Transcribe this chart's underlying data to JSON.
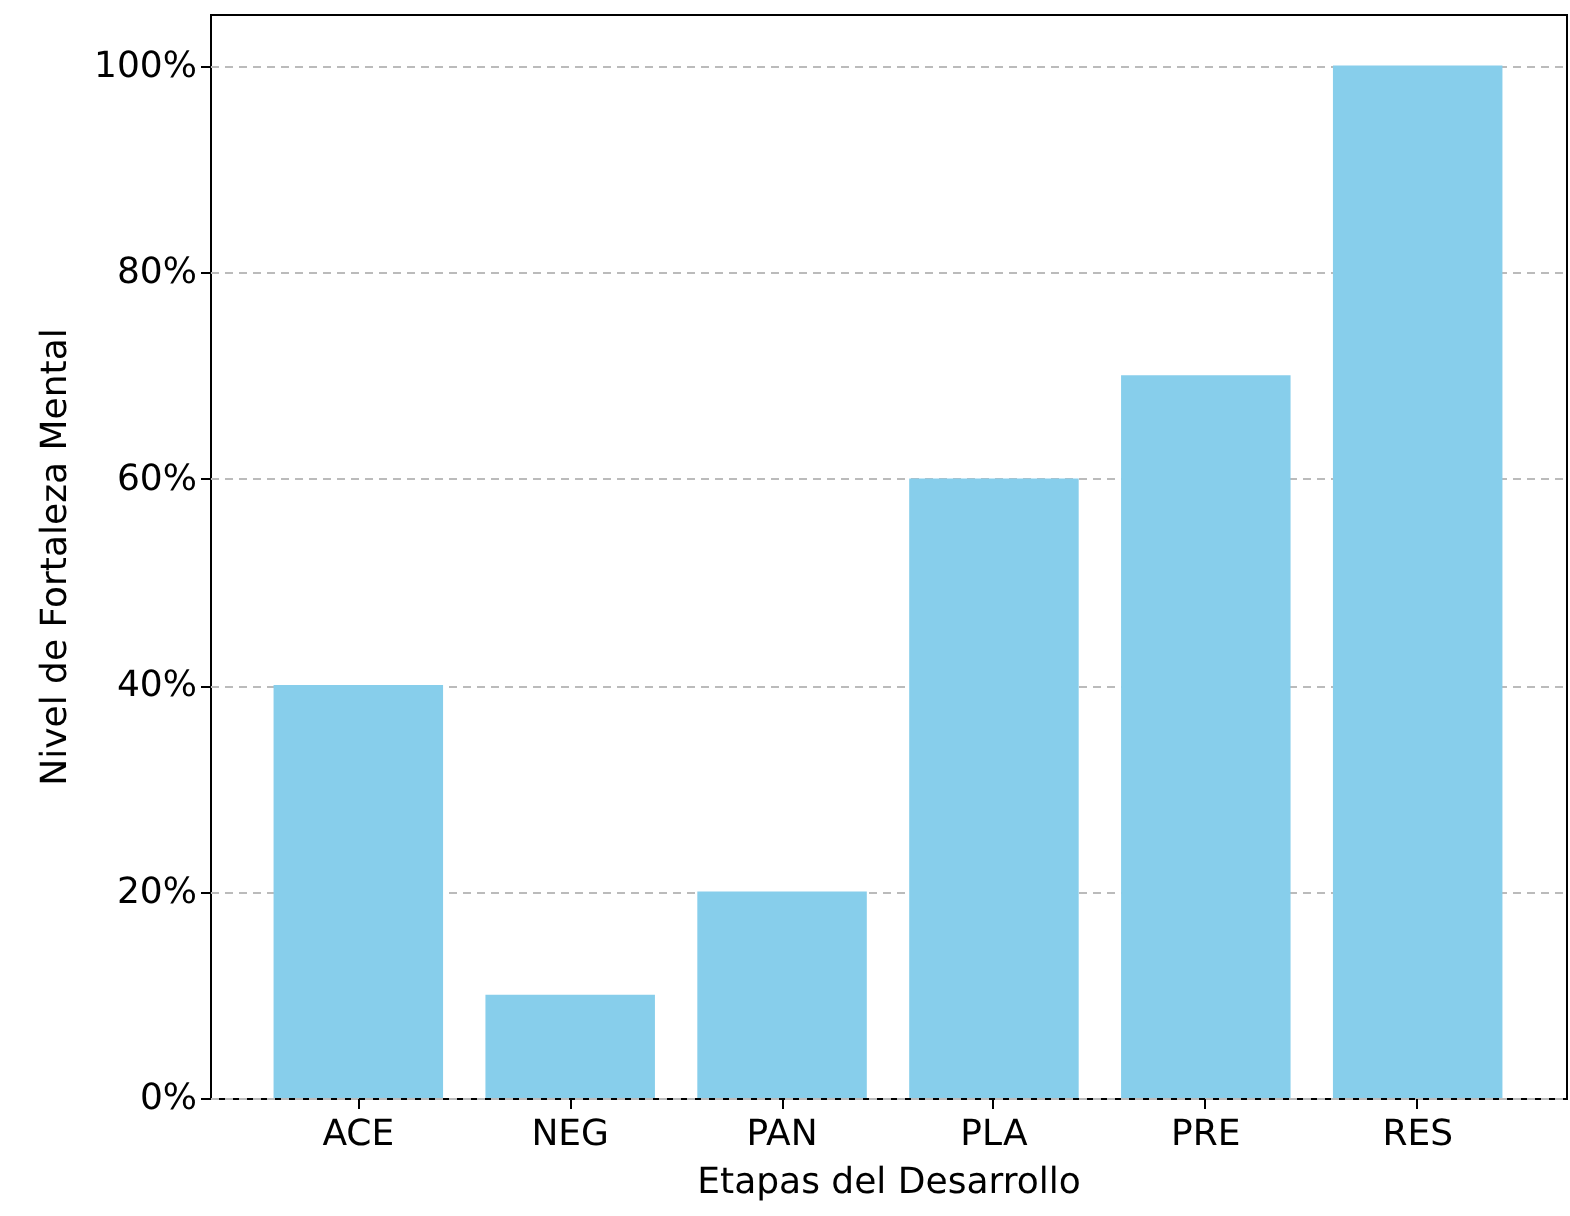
{
  "chart_data": {
    "type": "bar",
    "xlabel": "Etapas del Desarrollo",
    "ylabel": "Nivel de Fortaleza Mental",
    "categories": [
      "ACE",
      "NEG",
      "PAN",
      "PLA",
      "PRE",
      "RES"
    ],
    "values": [
      40,
      10,
      20,
      60,
      70,
      100
    ],
    "color": "#87ceeb",
    "ylim": [
      0,
      105
    ],
    "yticks": [
      {
        "value": 0,
        "label": "0%"
      },
      {
        "value": 20,
        "label": "20%"
      },
      {
        "value": 40,
        "label": "40%"
      },
      {
        "value": 60,
        "label": "60%"
      },
      {
        "value": 80,
        "label": "80%"
      },
      {
        "value": 100,
        "label": "100%"
      }
    ],
    "grid": "y"
  }
}
